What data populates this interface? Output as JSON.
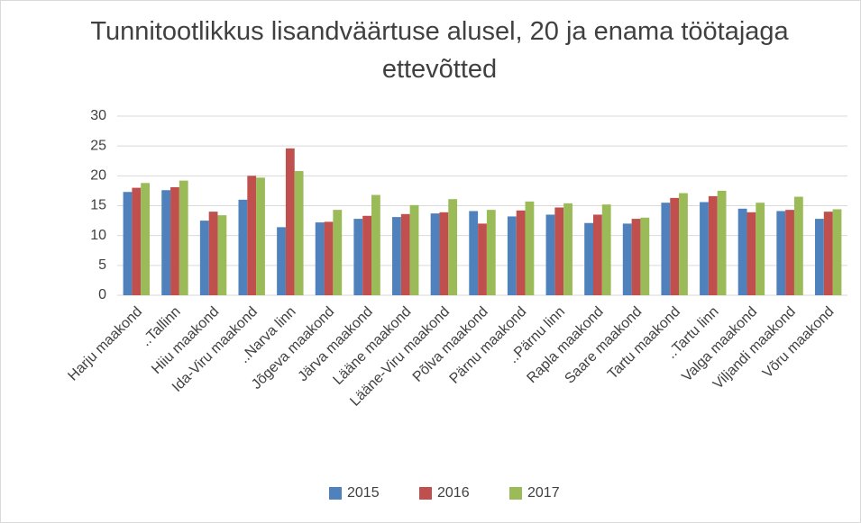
{
  "chart_data": {
    "type": "bar",
    "title": "Tunnitootlikkus lisandväärtuse alusel, 20 ja enama töötajaga ettevõtted",
    "categories": [
      "Harju maakond",
      "..Tallinn",
      "Hiiu maakond",
      "Ida-Viru maakond",
      "..Narva linn",
      "Jõgeva maakond",
      "Järva maakond",
      "Lääne maakond",
      "Lääne-Viru maakond",
      "Põlva maakond",
      "Pärnu maakond",
      "..Pärnu linn",
      "Rapla maakond",
      "Saare maakond",
      "Tartu maakond",
      "..Tartu linn",
      "Valga maakond",
      "Viljandi maakond",
      "Võru maakond"
    ],
    "series": [
      {
        "name": "2015",
        "color": "#4f81bd",
        "values": [
          17.3,
          17.6,
          12.5,
          16.0,
          11.4,
          12.2,
          12.8,
          13.1,
          13.7,
          14.1,
          13.2,
          13.5,
          12.1,
          12.0,
          15.5,
          15.6,
          14.5,
          14.1,
          12.8
        ]
      },
      {
        "name": "2016",
        "color": "#c0504d",
        "values": [
          18.0,
          18.1,
          14.0,
          20.0,
          24.6,
          12.3,
          13.3,
          13.6,
          13.9,
          12.0,
          14.2,
          14.7,
          13.5,
          12.8,
          16.3,
          16.6,
          13.9,
          14.3,
          14.0
        ]
      },
      {
        "name": "2017",
        "color": "#9bbb59",
        "values": [
          18.8,
          19.2,
          13.4,
          19.7,
          20.8,
          14.3,
          16.8,
          15.1,
          16.1,
          14.3,
          15.7,
          15.4,
          15.2,
          13.0,
          17.1,
          17.5,
          15.5,
          16.5,
          14.4
        ]
      }
    ],
    "ylim": [
      0,
      30
    ],
    "yticks": [
      0,
      5,
      10,
      15,
      20,
      25,
      30
    ],
    "grid": true,
    "legend": "bottom"
  }
}
